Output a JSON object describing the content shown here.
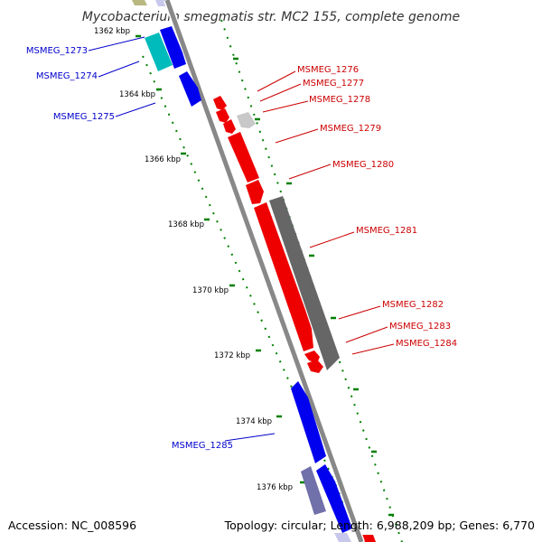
{
  "title": "Mycobacterium smegmatis str. MC2 155, complete genome",
  "footer": {
    "accession": "Accession: NC_008596",
    "summary": "Topology: circular; Length: 6,988,209 bp; Genes: 6,770"
  },
  "colors": {
    "forward_gene": "#0000ee",
    "reverse_gene": "#ee0000",
    "forward_label": "#0000cc",
    "reverse_label": "#cc0000",
    "backbone": "#888888",
    "tick": "#008000"
  },
  "ruler": {
    "unit": "kbp",
    "labeled_positions_kbp": [
      1362,
      1364,
      1366,
      1368,
      1370,
      1372,
      1374,
      1376
    ],
    "labels": [
      "1362 kbp",
      "1364 kbp",
      "1366 kbp",
      "1368 kbp",
      "1370 kbp",
      "1372 kbp",
      "1374 kbp",
      "1376 kbp"
    ]
  },
  "genes": [
    {
      "label": "MSMEG_1273",
      "strand": "forward",
      "feature_color": "cyan"
    },
    {
      "label": "MSMEG_1274",
      "strand": "forward",
      "feature_color": "blue"
    },
    {
      "label": "MSMEG_1275",
      "strand": "forward",
      "feature_color": "blue"
    },
    {
      "label": "MSMEG_1276",
      "strand": "reverse",
      "feature_color": "red"
    },
    {
      "label": "MSMEG_1277",
      "strand": "reverse",
      "feature_color": "red"
    },
    {
      "label": "MSMEG_1278",
      "strand": "reverse",
      "feature_color": "lightgray"
    },
    {
      "label": "MSMEG_1279",
      "strand": "reverse",
      "feature_color": "red"
    },
    {
      "label": "MSMEG_1280",
      "strand": "reverse",
      "feature_color": "red"
    },
    {
      "label": "MSMEG_1281",
      "strand": "reverse",
      "feature_color": "red"
    },
    {
      "label": "MSMEG_1282",
      "strand": "reverse",
      "feature_color": "red"
    },
    {
      "label": "MSMEG_1283",
      "strand": "reverse",
      "feature_color": "red"
    },
    {
      "label": "MSMEG_1284",
      "strand": "reverse",
      "feature_color": "red"
    },
    {
      "label": "MSMEG_1285",
      "strand": "forward",
      "feature_color": "blue"
    }
  ]
}
